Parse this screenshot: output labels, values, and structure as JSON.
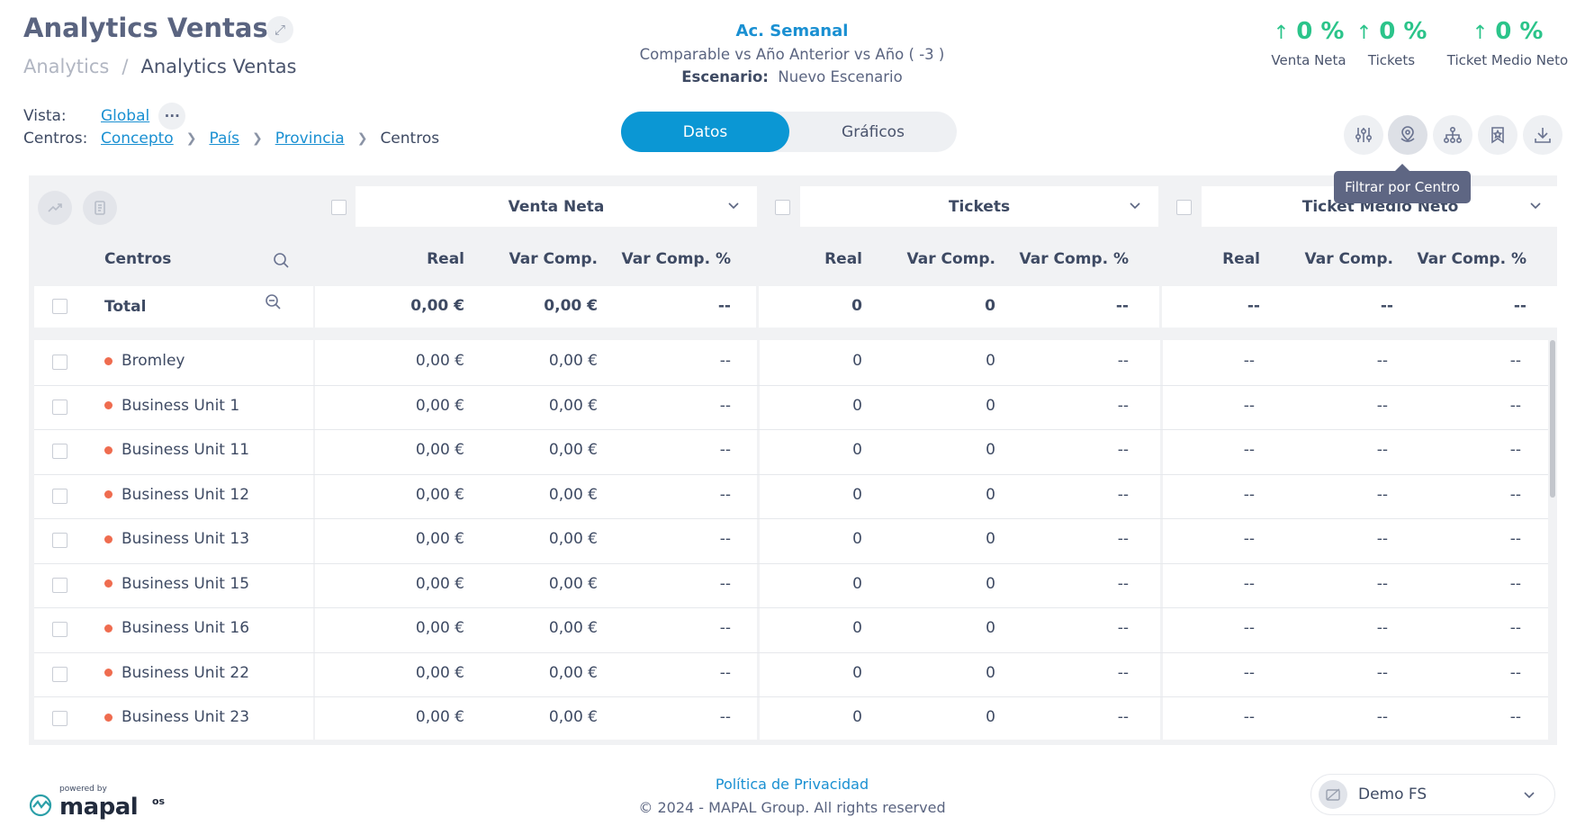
{
  "header": {
    "title": "Analytics Ventas",
    "breadcrumb": [
      "Analytics",
      "Analytics Ventas"
    ],
    "vista_label": "Vista:",
    "vista_value": "Global",
    "centros_label": "Centros:",
    "centros_path": [
      "Concepto",
      "País",
      "Provincia"
    ],
    "centros_current": "Centros"
  },
  "period": {
    "title": "Ac. Semanal",
    "comparison": "Comparable vs Año Anterior vs Año ( -3 )",
    "scenario_label": "Escenario:",
    "scenario_value": "Nuevo Escenario"
  },
  "kpis": [
    {
      "value": "0 %",
      "label": "Venta Neta",
      "arrow": "↑"
    },
    {
      "value": "0 %",
      "label": "Tickets",
      "arrow": "↑"
    },
    {
      "value": "0 %",
      "label": "Ticket Medio Neto",
      "arrow": "↑"
    }
  ],
  "view_toggle": {
    "active": "Datos",
    "inactive": "Gráficos"
  },
  "toolbar": {
    "icons": [
      "sliders-icon",
      "location-pin-icon",
      "hierarchy-icon",
      "bookmark-star-icon",
      "download-icon"
    ],
    "tooltip": "Filtrar por Centro"
  },
  "table": {
    "groups": [
      "Venta Neta",
      "Tickets",
      "Ticket Medio Neto"
    ],
    "row_header": "Centros",
    "sub_headers": [
      "Real",
      "Var Comp.",
      "Var Comp. %"
    ],
    "total": {
      "label": "Total",
      "values": [
        "0,00 €",
        "0,00 €",
        "--",
        "0",
        "0",
        "--",
        "--",
        "--",
        "--"
      ]
    },
    "rows": [
      {
        "name": "Bromley",
        "values": [
          "0,00 €",
          "0,00 €",
          "--",
          "0",
          "0",
          "--",
          "--",
          "--",
          "--"
        ]
      },
      {
        "name": "Business Unit 1",
        "values": [
          "0,00 €",
          "0,00 €",
          "--",
          "0",
          "0",
          "--",
          "--",
          "--",
          "--"
        ]
      },
      {
        "name": "Business Unit 11",
        "values": [
          "0,00 €",
          "0,00 €",
          "--",
          "0",
          "0",
          "--",
          "--",
          "--",
          "--"
        ]
      },
      {
        "name": "Business Unit 12",
        "values": [
          "0,00 €",
          "0,00 €",
          "--",
          "0",
          "0",
          "--",
          "--",
          "--",
          "--"
        ]
      },
      {
        "name": "Business Unit 13",
        "values": [
          "0,00 €",
          "0,00 €",
          "--",
          "0",
          "0",
          "--",
          "--",
          "--",
          "--"
        ]
      },
      {
        "name": "Business Unit 15",
        "values": [
          "0,00 €",
          "0,00 €",
          "--",
          "0",
          "0",
          "--",
          "--",
          "--",
          "--"
        ]
      },
      {
        "name": "Business Unit 16",
        "values": [
          "0,00 €",
          "0,00 €",
          "--",
          "0",
          "0",
          "--",
          "--",
          "--",
          "--"
        ]
      },
      {
        "name": "Business Unit 22",
        "values": [
          "0,00 €",
          "0,00 €",
          "--",
          "0",
          "0",
          "--",
          "--",
          "--",
          "--"
        ]
      },
      {
        "name": "Business Unit 23",
        "values": [
          "0,00 €",
          "0,00 €",
          "--",
          "0",
          "0",
          "--",
          "--",
          "--",
          "--"
        ]
      }
    ]
  },
  "footer": {
    "privacy": "Política de Privacidad",
    "copyright": "© 2024 - MAPAL Group. All rights reserved",
    "powered_by": "powered by",
    "brand": "mapal",
    "brand_suffix": "os",
    "account": "Demo FS"
  },
  "colors": {
    "accent": "#0b97d4",
    "kpi_up": "#2bc48a",
    "status_dot": "#ef6c4f",
    "tooltip": "#5e6683"
  }
}
